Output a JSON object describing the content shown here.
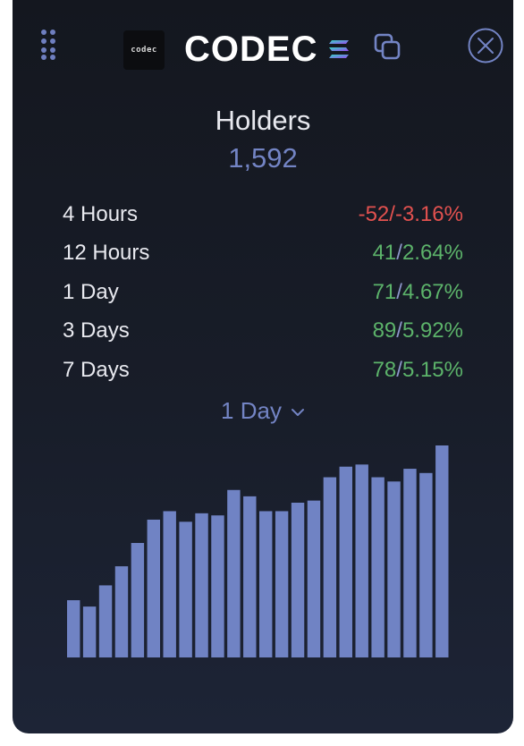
{
  "header": {
    "logo_text": "codec",
    "token_name": "CODEC",
    "icons": {
      "drag": "drag-handle-icon",
      "chain": "solana-icon",
      "copy": "copy-icon",
      "close": "close-icon"
    }
  },
  "holders": {
    "title": "Holders",
    "count": "1,592"
  },
  "stats": [
    {
      "label": "4 Hours",
      "change": "-52",
      "percent": "-3.16%",
      "trend": "down"
    },
    {
      "label": "12 Hours",
      "change": "41",
      "percent": "2.64%",
      "trend": "up"
    },
    {
      "label": "1 Day",
      "change": "71",
      "percent": "4.67%",
      "trend": "up"
    },
    {
      "label": "3 Days",
      "change": "89",
      "percent": "5.92%",
      "trend": "up"
    },
    {
      "label": "7 Days",
      "change": "78",
      "percent": "5.15%",
      "trend": "up"
    }
  ],
  "period_select": {
    "selected": "1 Day"
  },
  "colors": {
    "accent": "#7384c4",
    "bar": "#7083c4",
    "negative": "#e2514f",
    "positive": "#5cb36a"
  },
  "chart_data": {
    "type": "bar",
    "ylim": [
      0,
      100
    ],
    "values": [
      27,
      24,
      34,
      43,
      54,
      65,
      69,
      64,
      68,
      67,
      79,
      76,
      69,
      69,
      73,
      74,
      85,
      90,
      91,
      85,
      83,
      89,
      87,
      100
    ]
  }
}
